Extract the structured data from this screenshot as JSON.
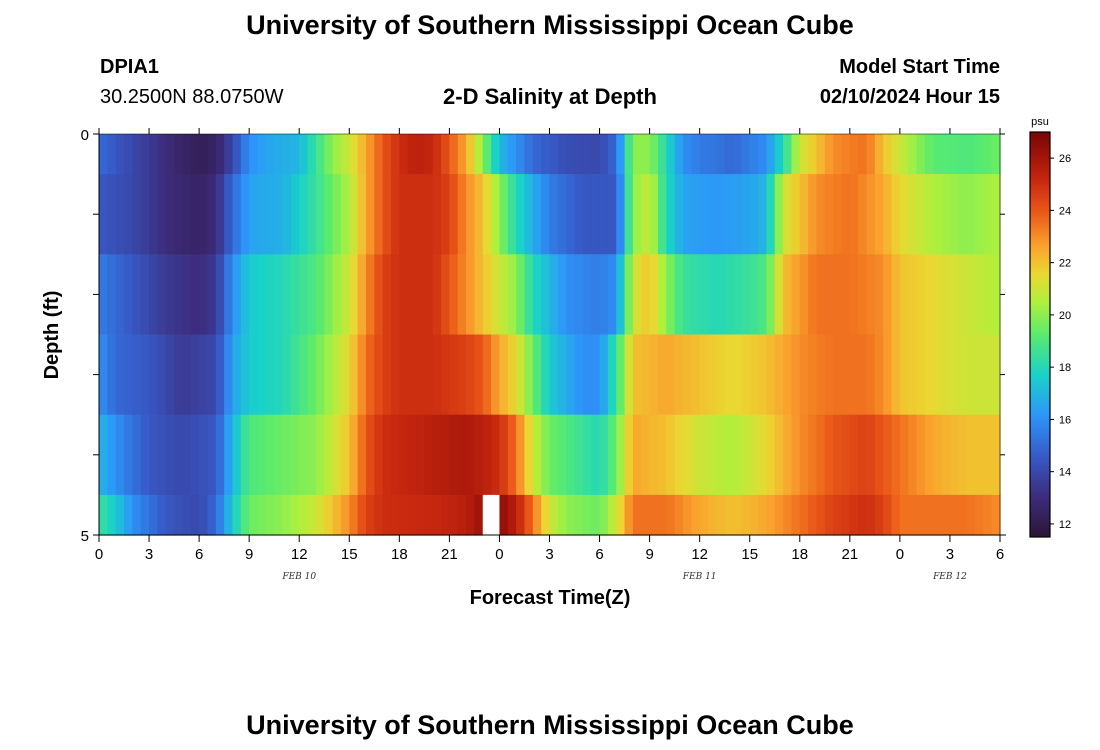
{
  "header": {
    "title_top": "University of Southern Mississippi Ocean Cube",
    "station": "DPIA1",
    "coords": "30.2500N  88.0750W",
    "plot_title": "2-D Salinity at Depth",
    "model_label": "Model Start Time",
    "model_time": "02/10/2024 Hour 15",
    "title_bottom": "University of Southern Mississippi Ocean Cube"
  },
  "chart_data": {
    "type": "heatmap",
    "title": "2-D Salinity at Depth",
    "xlabel": "Forecast Time(Z)",
    "ylabel": "Depth (ft)",
    "x_ticks": [
      "0",
      "3",
      "6",
      "9",
      "12",
      "15",
      "18",
      "21",
      "0",
      "3",
      "6",
      "9",
      "12",
      "15",
      "18",
      "21",
      "0",
      "3",
      "6"
    ],
    "date_labels": [
      {
        "text": "FEB 10",
        "hour": 12
      },
      {
        "text": "FEB 11",
        "hour": 36
      },
      {
        "text": "FEB 12",
        "hour": 51
      }
    ],
    "y_ticks": [
      "0",
      "5"
    ],
    "y_range": [
      0,
      5
    ],
    "x_range_hours": [
      0,
      54
    ],
    "colorbar": {
      "unit": "psu",
      "range": [
        11.5,
        27
      ],
      "ticks": [
        12,
        14,
        16,
        18,
        20,
        22,
        24,
        26
      ]
    },
    "gap_hour": 23.5,
    "rows": [
      {
        "depth": "0.0-0.5 ft",
        "anchors": [
          [
            0,
            15
          ],
          [
            2,
            14
          ],
          [
            4,
            13
          ],
          [
            6,
            12.2
          ],
          [
            7,
            12.5
          ],
          [
            8,
            14
          ],
          [
            9,
            16
          ],
          [
            10,
            16.5
          ],
          [
            12,
            17
          ],
          [
            13,
            18.5
          ],
          [
            14,
            20
          ],
          [
            15,
            21
          ],
          [
            16,
            22.5
          ],
          [
            17,
            24
          ],
          [
            18,
            25
          ],
          [
            19,
            25.5
          ],
          [
            20,
            25.2
          ],
          [
            21,
            24
          ],
          [
            22,
            22.5
          ],
          [
            23,
            20
          ],
          [
            24,
            17
          ],
          [
            26,
            15
          ],
          [
            28,
            14.2
          ],
          [
            30,
            14
          ],
          [
            31,
            15
          ],
          [
            32,
            20
          ],
          [
            33,
            20
          ],
          [
            34,
            18
          ],
          [
            35,
            16
          ],
          [
            36,
            15.5
          ],
          [
            38,
            15
          ],
          [
            39,
            15.5
          ],
          [
            40,
            16
          ],
          [
            41,
            18
          ],
          [
            42,
            21
          ],
          [
            43,
            22
          ],
          [
            44,
            23
          ],
          [
            46,
            23.5
          ],
          [
            47,
            22
          ],
          [
            48,
            21
          ],
          [
            49,
            20
          ],
          [
            50,
            19.2
          ],
          [
            52,
            19
          ],
          [
            54,
            19.5
          ]
        ]
      },
      {
        "depth": "0.5-1.5 ft",
        "anchors": [
          [
            0,
            14.5
          ],
          [
            2,
            14
          ],
          [
            4,
            13
          ],
          [
            6,
            12.5
          ],
          [
            7,
            13
          ],
          [
            8,
            15
          ],
          [
            9,
            16.5
          ],
          [
            11,
            16.8
          ],
          [
            13,
            18.5
          ],
          [
            15,
            20.5
          ],
          [
            16,
            22.5
          ],
          [
            17,
            24
          ],
          [
            18,
            25
          ],
          [
            20,
            25
          ],
          [
            21,
            24.5
          ],
          [
            22,
            23
          ],
          [
            23,
            22
          ],
          [
            24,
            20
          ],
          [
            25,
            18
          ],
          [
            27,
            15.5
          ],
          [
            29,
            14.5
          ],
          [
            31,
            14.5
          ],
          [
            32,
            20
          ],
          [
            33,
            21
          ],
          [
            34,
            18
          ],
          [
            35,
            16.5
          ],
          [
            37,
            16.2
          ],
          [
            39,
            16.5
          ],
          [
            40,
            17
          ],
          [
            41,
            21
          ],
          [
            43,
            23
          ],
          [
            45,
            23.5
          ],
          [
            47,
            22.5
          ],
          [
            48,
            21.5
          ],
          [
            50,
            20.5
          ],
          [
            52,
            20
          ],
          [
            54,
            20.5
          ]
        ]
      },
      {
        "depth": "1.5-2.5 ft",
        "anchors": [
          [
            0,
            15.5
          ],
          [
            2,
            14.5
          ],
          [
            4,
            13.5
          ],
          [
            6,
            13
          ],
          [
            7,
            13.5
          ],
          [
            8,
            16
          ],
          [
            9,
            17.5
          ],
          [
            11,
            18
          ],
          [
            13,
            19
          ],
          [
            15,
            21
          ],
          [
            16,
            23
          ],
          [
            17,
            24.5
          ],
          [
            18,
            25
          ],
          [
            20,
            25
          ],
          [
            21,
            24
          ],
          [
            22,
            23
          ],
          [
            23,
            22
          ],
          [
            24,
            21
          ],
          [
            25,
            20
          ],
          [
            26,
            18
          ],
          [
            28,
            16
          ],
          [
            30,
            15.5
          ],
          [
            31,
            16
          ],
          [
            32,
            21
          ],
          [
            33,
            22
          ],
          [
            34,
            20
          ],
          [
            35,
            18.5
          ],
          [
            37,
            18
          ],
          [
            39,
            18.5
          ],
          [
            40,
            19
          ],
          [
            41,
            22
          ],
          [
            43,
            23.5
          ],
          [
            45,
            23.5
          ],
          [
            47,
            23
          ],
          [
            48,
            22
          ],
          [
            50,
            21.5
          ],
          [
            52,
            21
          ],
          [
            54,
            20.5
          ]
        ]
      },
      {
        "depth": "2.5-3.5 ft",
        "anchors": [
          [
            0,
            16
          ],
          [
            1,
            15
          ],
          [
            3,
            14.5
          ],
          [
            5,
            13.5
          ],
          [
            7,
            14
          ],
          [
            8,
            16.5
          ],
          [
            9,
            17.5
          ],
          [
            11,
            18
          ],
          [
            13,
            19.5
          ],
          [
            15,
            21.5
          ],
          [
            16,
            23.5
          ],
          [
            17,
            24.5
          ],
          [
            18,
            25
          ],
          [
            20,
            25
          ],
          [
            22,
            24.5
          ],
          [
            23,
            24
          ],
          [
            24,
            22.5
          ],
          [
            25,
            21.5
          ],
          [
            26,
            19.5
          ],
          [
            27,
            17.5
          ],
          [
            29,
            16
          ],
          [
            30,
            16
          ],
          [
            31,
            18.5
          ],
          [
            32,
            22
          ],
          [
            34,
            22.5
          ],
          [
            36,
            22
          ],
          [
            38,
            21.5
          ],
          [
            40,
            22
          ],
          [
            42,
            23
          ],
          [
            44,
            23.5
          ],
          [
            46,
            23.5
          ],
          [
            47,
            23
          ],
          [
            48,
            22
          ],
          [
            50,
            21.5
          ],
          [
            52,
            21
          ],
          [
            54,
            21
          ]
        ]
      },
      {
        "depth": "3.5-4.5 ft",
        "anchors": [
          [
            0,
            17
          ],
          [
            1,
            16
          ],
          [
            3,
            14.5
          ],
          [
            5,
            14
          ],
          [
            7,
            14.5
          ],
          [
            8,
            17
          ],
          [
            9,
            19
          ],
          [
            11,
            19.5
          ],
          [
            13,
            20
          ],
          [
            15,
            22
          ],
          [
            16,
            24
          ],
          [
            17,
            25
          ],
          [
            18,
            25.2
          ],
          [
            20,
            25.5
          ],
          [
            22,
            25.8
          ],
          [
            23,
            25.5
          ],
          [
            24,
            25
          ],
          [
            25,
            23.5
          ],
          [
            26,
            21
          ],
          [
            27,
            19.5
          ],
          [
            29,
            18.5
          ],
          [
            30,
            18
          ],
          [
            31,
            19.5
          ],
          [
            32,
            22.5
          ],
          [
            34,
            22
          ],
          [
            36,
            21
          ],
          [
            38,
            20.5
          ],
          [
            40,
            21.5
          ],
          [
            42,
            23
          ],
          [
            44,
            24
          ],
          [
            46,
            24.5
          ],
          [
            47,
            24
          ],
          [
            48,
            23.5
          ],
          [
            50,
            22.5
          ],
          [
            52,
            22
          ],
          [
            54,
            22
          ]
        ]
      },
      {
        "depth": "4.5-5.0 ft",
        "anchors": [
          [
            0,
            18.5
          ],
          [
            1,
            17.5
          ],
          [
            2,
            16
          ],
          [
            4,
            14.5
          ],
          [
            6,
            14
          ],
          [
            7,
            15
          ],
          [
            8,
            17.5
          ],
          [
            9,
            19.5
          ],
          [
            11,
            20
          ],
          [
            13,
            21
          ],
          [
            15,
            23
          ],
          [
            16,
            24.5
          ],
          [
            17,
            25
          ],
          [
            20,
            25.2
          ],
          [
            22,
            25.5
          ],
          [
            23,
            26.2
          ],
          [
            24,
            26.5
          ],
          [
            25,
            25.5
          ],
          [
            26,
            23.5
          ],
          [
            27,
            21
          ],
          [
            28,
            20
          ],
          [
            30,
            19.5
          ],
          [
            31,
            21
          ],
          [
            32,
            23.5
          ],
          [
            34,
            23.5
          ],
          [
            36,
            22.5
          ],
          [
            38,
            22
          ],
          [
            40,
            22.5
          ],
          [
            42,
            23.5
          ],
          [
            44,
            24.5
          ],
          [
            46,
            25
          ],
          [
            47,
            24.5
          ],
          [
            48,
            23.5
          ],
          [
            50,
            23.5
          ],
          [
            52,
            23.5
          ],
          [
            54,
            23
          ]
        ]
      }
    ],
    "row_bounds_ft": [
      0,
      0.5,
      1.5,
      2.5,
      3.5,
      4.5,
      5
    ]
  }
}
